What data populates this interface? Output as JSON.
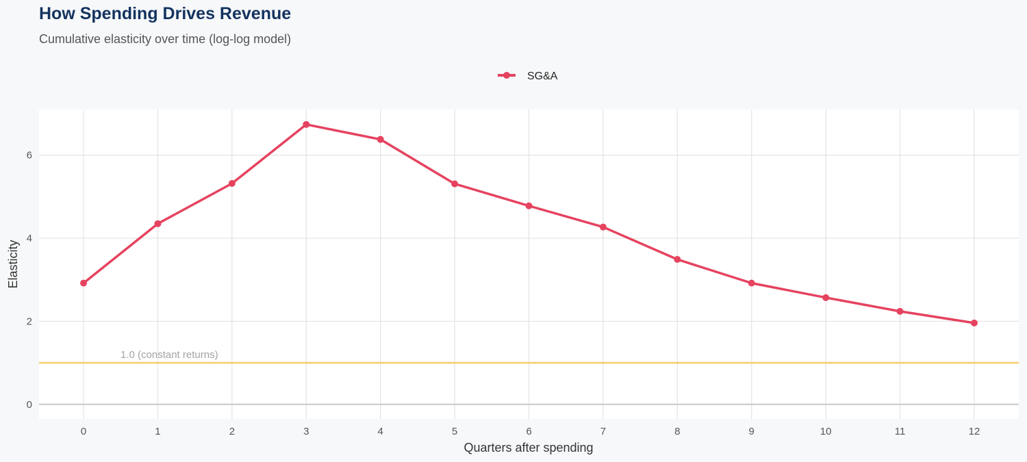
{
  "chart_data": {
    "type": "line",
    "title": "How Spending Drives Revenue",
    "subtitle": "Cumulative elasticity over time (log-log model)",
    "xlabel": "Quarters after spending",
    "ylabel": "Elasticity",
    "x": [
      0,
      1,
      2,
      3,
      4,
      5,
      6,
      7,
      8,
      9,
      10,
      11,
      12
    ],
    "series": [
      {
        "name": "SG&A",
        "color": "#e5435f",
        "values": [
          2.92,
          4.35,
          5.32,
          6.74,
          6.38,
          5.31,
          4.78,
          4.27,
          3.49,
          2.92,
          2.57,
          2.24,
          1.96
        ]
      }
    ],
    "xlim": [
      -0.6,
      12.6
    ],
    "ylim": [
      -0.35,
      7.1
    ],
    "yticks": [
      0,
      2,
      4,
      6
    ],
    "xticks": [
      0,
      1,
      2,
      3,
      4,
      5,
      6,
      7,
      8,
      9,
      10,
      11,
      12
    ],
    "grid": true,
    "legend": "top",
    "reference_line": {
      "y": 1.0,
      "label": "1.0 (constant returns)",
      "color": "#f7cd6b"
    }
  }
}
